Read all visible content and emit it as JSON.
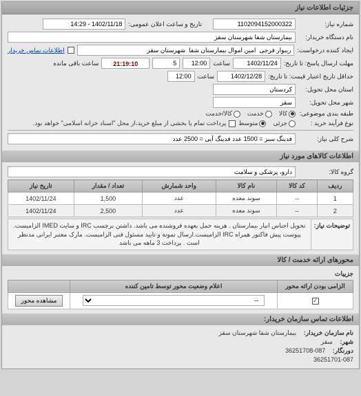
{
  "panel_title": "جزئیات اطلاعات نیاز",
  "fields": {
    "req_no_label": "شماره نیاز:",
    "req_no": "1102094152000322",
    "announce_label": "تاریخ و ساعت اعلان عمومی:",
    "announce": "1402/11/18 - 14:29",
    "buyer_label": "نام دستگاه خریدار:",
    "buyer": "بیمارستان شفا شهرستان سقز",
    "requester_label": "ایجاد کننده درخواست:",
    "requester": "ریبوار فرجی  امین اموال بیمارستان شفا  شهرستان سقز",
    "contact_link": "اطلاعات تماس خریدار",
    "deadline_label": "مهلت ارسال پاسخ: تا تاریخ:",
    "deadline_date": "1402/11/24",
    "time_label": "ساعت",
    "deadline_time": "12:00",
    "days_left": "5",
    "countdown": "21:19:10",
    "remaining_label": "ساعت باقی مانده",
    "validity_label": "حداقل تاریخ اعتبار قیمت: تا تاریخ:",
    "validity_date": "1402/12/28",
    "validity_time": "12:00",
    "province_label": "استان محل تحویل:",
    "province": "کردستان",
    "city_label": "شهر محل تحویل:",
    "city": "سقز",
    "pkg_label": "طبقه بندی موضوعی:",
    "pkg_opts": {
      "goods": "کالا",
      "service": "خدمت",
      "both": "کالا/خدمت"
    },
    "pkg_selected": "goods",
    "amount_label": "نوع فرآیند خرید :",
    "amount_opts": {
      "low": "جزئی",
      "med": "متوسط"
    },
    "amount_selected": "med",
    "amount_note": "پرداخت تمام یا بخشی از مبلغ خرید،از محل \"اسناد خزانه اسلامی\" خواهد بود.",
    "summary_label": "شرح کلی نیاز:",
    "summary": "فدینگ سبز = 1500 عدد فدینگ آبی = 2500 عدد"
  },
  "goods_section": {
    "title": "اطلاعات کالاهای مورد نیاز",
    "group_label": "گروه کالا:",
    "group": "دارو، پزشکی و سلامت",
    "columns": [
      "ردیف",
      "کد کالا",
      "نام کالا",
      "واحد شمارش",
      "تعداد / مقدار",
      "تاریخ نیاز"
    ],
    "rows": [
      [
        "1",
        "--",
        "سوند معده",
        "عدد",
        "1,500",
        "1402/11/24"
      ],
      [
        "2",
        "--",
        "سوند معده",
        "عدد",
        "2,500",
        "1402/11/24"
      ]
    ],
    "desc_label": "توضیحات نیاز:",
    "desc": "تحویل اجناس انبار بیمارستان . هزینه حمل بعهده فروشنده می باشد. داشتن برچسب IRC و سایت IMED الزامیست. پیوست پیش فاکتور همراه IRC الزامیست.ارسال نمونه و تایید مسئول فنی الزامیست. مارک معتبر ایرانی مدنظر است . پرداخت 3 ماهه می باشد"
  },
  "axis_section": {
    "title": "محورهای ارائه خدمت / کالا",
    "subtitle": "جزییات",
    "columns": [
      "الزامی بودن ارائه محور",
      "اعلام وضعیت محور توسط تامین کننده",
      ""
    ],
    "row": {
      "checked": true,
      "status": "--",
      "btn": "مشاهده محور"
    }
  },
  "footer": {
    "title": "اطلاعات تماس سازمان خریدار:",
    "org_label": "نام سازمان خریدار:",
    "org": "بیمارستان شفا شهرستان سقز",
    "city_label": "شهر:",
    "city": "سقز",
    "faxes_label": "دورنگار:",
    "faxes": "36251708-087",
    "tel_label": "",
    "tel": "36251701-087"
  }
}
